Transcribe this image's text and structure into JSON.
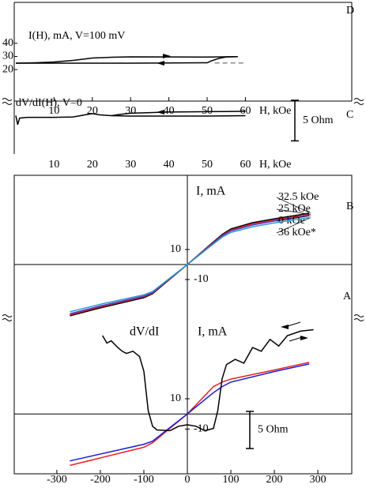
{
  "chart_data": [
    {
      "type": "line",
      "panel_label": "D",
      "title": "I(H), mA, V=100 mV",
      "x_label": "H, kOe",
      "xlim": [
        0,
        88
      ],
      "xticks": [
        10,
        20,
        30,
        40,
        50,
        60
      ],
      "ylim": [
        -4,
        73
      ],
      "yticks": [
        20,
        30,
        40
      ],
      "series": [
        {
          "color": "#000000",
          "x": [
            0,
            5,
            10,
            15,
            20,
            25,
            30,
            40,
            50,
            58
          ],
          "values": [
            24.9,
            25.2,
            25.8,
            27,
            28.8,
            29.4,
            29.7,
            29.6,
            29.5,
            29.8
          ]
        },
        {
          "color": "#000000",
          "x": [
            58,
            55,
            53,
            51,
            50,
            40,
            30,
            20,
            10,
            0
          ],
          "values": [
            29.8,
            29.6,
            28.5,
            26.5,
            25.2,
            25,
            24.9,
            24.9,
            24.9,
            24.9
          ]
        },
        {
          "color": "#888888",
          "line_style": "dashed",
          "x": [
            52,
            60
          ],
          "values": [
            25,
            25
          ]
        }
      ]
    },
    {
      "type": "line",
      "panel_label": "C",
      "title": "dV/dI(H), V=0",
      "x_label": "H, kOe",
      "xlim": [
        0,
        88
      ],
      "xticks": [
        10,
        20,
        30,
        40,
        50,
        60
      ],
      "ylim": [
        0,
        7
      ],
      "scale_bar": {
        "value": 5,
        "label": "5 Ohm"
      },
      "series": [
        {
          "color": "#000000",
          "x": [
            0,
            0.5,
            1,
            3,
            10,
            15,
            18,
            20,
            22,
            25,
            30,
            40,
            50,
            60
          ],
          "values": [
            5.2,
            4.1,
            4.9,
            5.0,
            5.0,
            5.05,
            5.3,
            5.45,
            5.3,
            5.2,
            5.15,
            5.15,
            5.15,
            5.2
          ]
        },
        {
          "color": "#000000",
          "x": [
            60,
            55,
            50,
            40,
            30,
            27,
            25
          ],
          "values": [
            5.75,
            5.72,
            5.7,
            5.65,
            5.5,
            5.35,
            5.2
          ]
        }
      ]
    },
    {
      "type": "line",
      "panel_label": "B",
      "y_label": "I, mA",
      "xlim": [
        -398,
        378
      ],
      "ylim": [
        -39.5,
        59.5
      ],
      "yticks": [
        -10,
        10
      ],
      "x": [
        -270,
        -200,
        -100,
        -80,
        -50,
        0,
        50,
        80,
        100,
        150,
        200,
        280
      ],
      "series": [
        {
          "name": "32.5 kOe",
          "color": "#000000",
          "values": [
            -34.2,
            -28.9,
            -22.1,
            -19.5,
            -12.1,
            0,
            12.6,
            20,
            23.7,
            27.9,
            30.5,
            34.2
          ]
        },
        {
          "name": "25 kOe",
          "color": "#e8202a",
          "values": [
            -33.5,
            -28.2,
            -21.5,
            -19,
            -11.8,
            0,
            12.2,
            19.4,
            23,
            27.1,
            29.7,
            33.4
          ]
        },
        {
          "name": "0 kOe",
          "color": "#4a3fc8",
          "values": [
            -32.8,
            -27.6,
            -21,
            -18.6,
            -11.6,
            0,
            11.9,
            19,
            22.4,
            26.4,
            29,
            32.6
          ]
        },
        {
          "name": "36 kOe*",
          "color": "#2f9ad0",
          "values": [
            -31.5,
            -26.5,
            -20.2,
            -18,
            -11.2,
            0,
            11.5,
            18.2,
            21.4,
            25.2,
            27.8,
            31.3
          ]
        }
      ]
    },
    {
      "type": "line",
      "panel_label": "A",
      "y_label": "I, mA",
      "y2_label": "dV/dI",
      "xlim": [
        -398,
        378
      ],
      "xticks": [
        -300,
        -200,
        -100,
        0,
        100,
        200,
        300
      ],
      "ylim": [
        -39.5,
        59.5
      ],
      "yticks": [
        -10,
        10
      ],
      "y2lim": [
        -3.2,
        17
      ],
      "scale_bar": {
        "value": 5,
        "label": "5 Ohm",
        "axis": "y2"
      },
      "x": [
        -270,
        -100,
        -80,
        0,
        60,
        80,
        100,
        200,
        280
      ],
      "series": [
        {
          "color": "#e8202a",
          "values": [
            -34,
            -22,
            -19,
            0,
            18,
            21,
            23,
            29,
            34
          ]
        },
        {
          "color": "#1a1ad0",
          "values": [
            -31,
            -20,
            -18,
            0,
            14,
            18,
            21,
            28,
            33
          ]
        },
        {
          "color": "#000000",
          "axis": "y2",
          "x": [
            -195,
            -185,
            -175,
            -160,
            -150,
            -140,
            -125,
            -110,
            -100,
            -90,
            -80,
            -70,
            -40,
            -20,
            0,
            20,
            40,
            60,
            70,
            80,
            90,
            110,
            130,
            150,
            170,
            190,
            210,
            230,
            260,
            290
          ],
          "values": [
            15.4,
            14.4,
            14.7,
            13.8,
            13.3,
            13.0,
            13.3,
            12.6,
            10.6,
            5.3,
            3.2,
            2.7,
            2.6,
            3.2,
            3.4,
            3.2,
            2.6,
            2.9,
            5.3,
            9.6,
            11.5,
            12.2,
            11.7,
            13.8,
            13.3,
            14.9,
            14.0,
            15.4,
            16.0,
            16.2
          ]
        }
      ]
    }
  ]
}
